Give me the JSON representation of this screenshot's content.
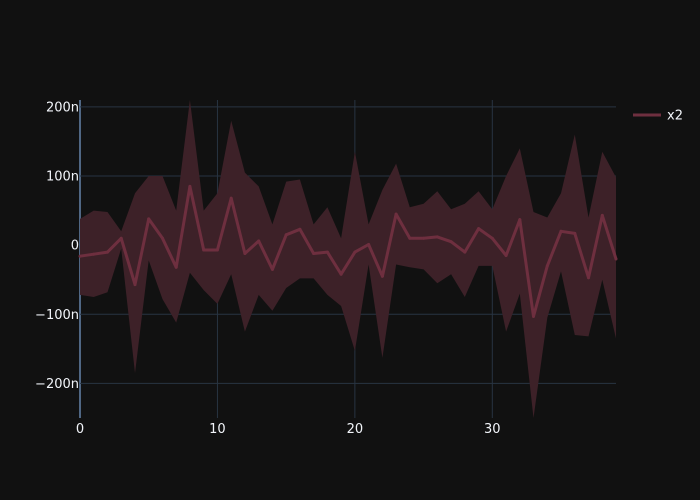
{
  "colors": {
    "background": "#111111",
    "grid": "#283442",
    "zero_line": "#506784",
    "band_fill": "#3d2128",
    "line": "#6e2f3f",
    "text": "#f2f5fa"
  },
  "chart_data": {
    "type": "area",
    "x": [
      0,
      1,
      2,
      3,
      4,
      5,
      6,
      7,
      8,
      9,
      10,
      11,
      12,
      13,
      14,
      15,
      16,
      17,
      18,
      19,
      20,
      21,
      22,
      23,
      24,
      25,
      26,
      27,
      28,
      29,
      30,
      31,
      32,
      33,
      34,
      35,
      36,
      37,
      38,
      39
    ],
    "series": [
      {
        "name": "x2",
        "values": [
          -16,
          -13,
          -10,
          10,
          -57,
          38,
          10,
          -32,
          85,
          -7,
          -7,
          68,
          -12,
          6,
          -35,
          15,
          23,
          -12,
          -10,
          -42,
          -10,
          1,
          -45,
          45,
          10,
          10,
          12,
          5,
          -10,
          24,
          10,
          -15,
          37,
          -103,
          -30,
          20,
          17,
          -47,
          43,
          -20
        ],
        "upper": [
          38,
          50,
          48,
          20,
          75,
          100,
          100,
          50,
          210,
          50,
          75,
          180,
          105,
          85,
          30,
          92,
          95,
          30,
          55,
          10,
          135,
          30,
          80,
          118,
          55,
          60,
          78,
          52,
          60,
          78,
          52,
          100,
          140,
          48,
          40,
          75,
          160,
          40,
          135,
          98
        ],
        "lower": [
          -72,
          -75,
          -68,
          -5,
          -185,
          -22,
          -78,
          -112,
          -40,
          -65,
          -85,
          -42,
          -125,
          -72,
          -95,
          -62,
          -48,
          -48,
          -72,
          -88,
          -153,
          -28,
          -163,
          -28,
          -32,
          -35,
          -55,
          -42,
          -75,
          -30,
          -30,
          -125,
          -70,
          -250,
          -105,
          -38,
          -130,
          -132,
          -50,
          -135
        ]
      }
    ],
    "xlim": [
      0,
      39
    ],
    "ylim": [
      -250,
      210
    ],
    "xticks": [
      0,
      10,
      20,
      30
    ],
    "xtick_labels": [
      "0",
      "10",
      "20",
      "30"
    ],
    "yticks": [
      200,
      100,
      0,
      -100,
      -200
    ],
    "ytick_labels": [
      "200n",
      "100n",
      "0",
      "−100n",
      "−200n"
    ],
    "grid": true,
    "legend": "top-right",
    "title": "",
    "xlabel": "",
    "ylabel": ""
  }
}
